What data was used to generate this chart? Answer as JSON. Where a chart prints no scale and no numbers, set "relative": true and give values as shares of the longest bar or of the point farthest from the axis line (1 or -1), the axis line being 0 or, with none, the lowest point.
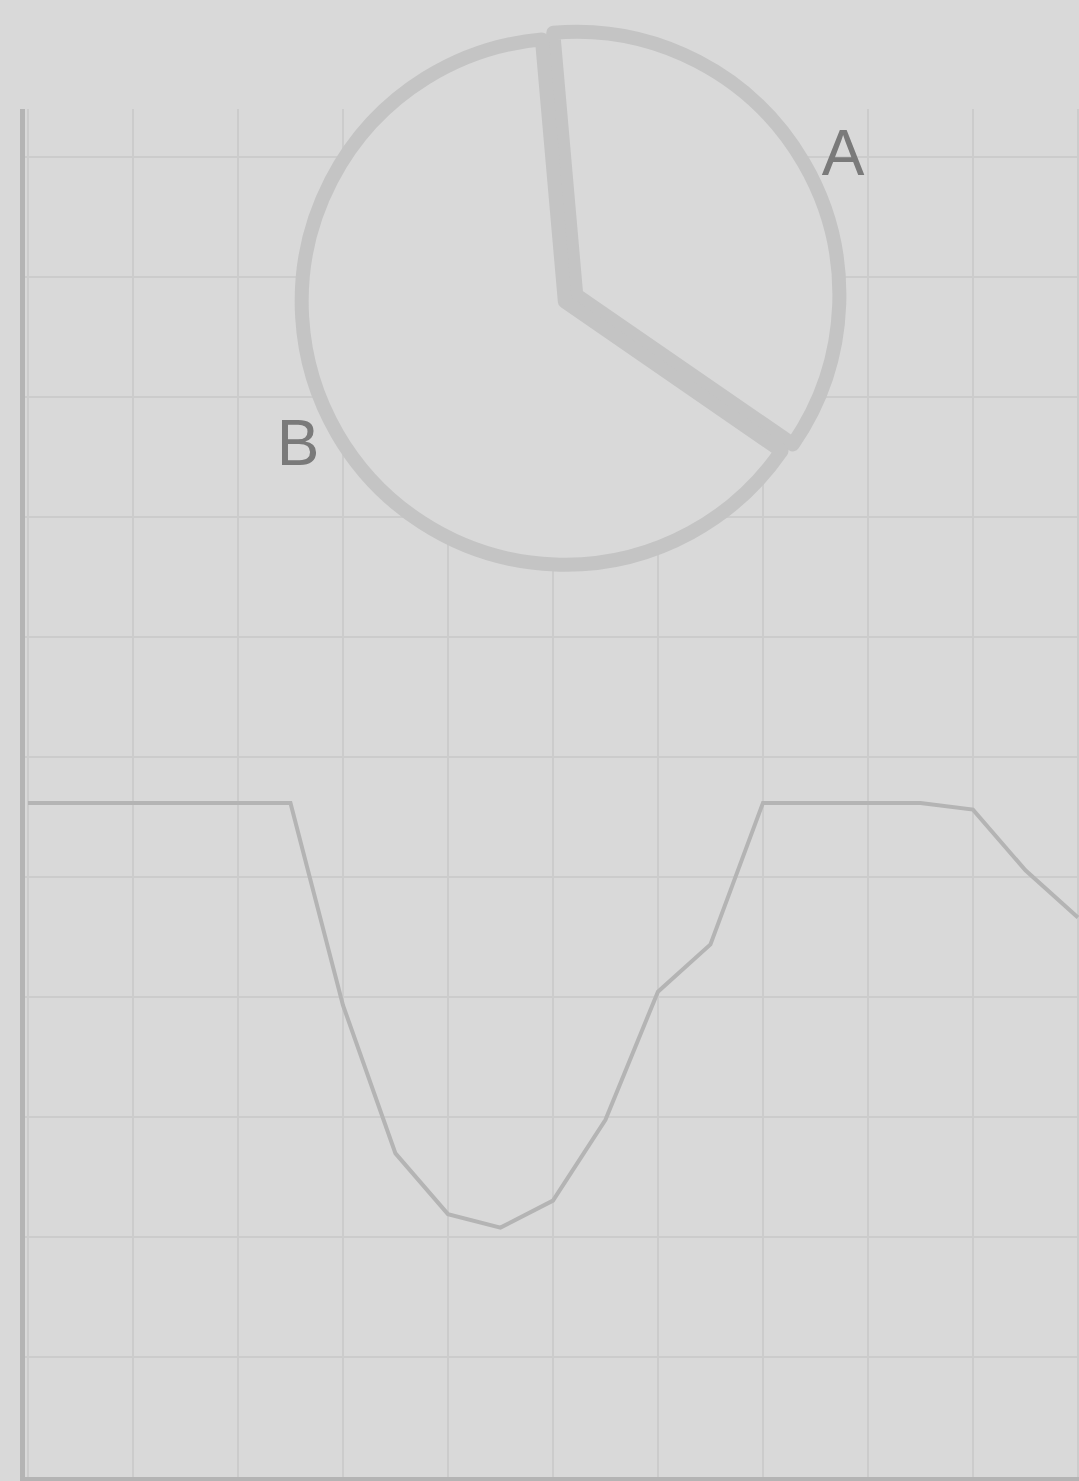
{
  "chart_data": [
    {
      "type": "pie",
      "categories": [
        "A",
        "B"
      ],
      "values": [
        36,
        64
      ],
      "colors": [
        "#d9d9d9",
        "#d9d9d9"
      ]
    },
    {
      "type": "line",
      "relative": true,
      "categories": [
        null,
        null,
        null,
        null,
        null,
        null,
        null,
        null,
        null,
        null,
        null,
        null,
        null,
        null,
        null,
        null,
        null,
        null,
        null,
        null,
        null
      ],
      "series": [
        {
          "color": "#b4b4b4",
          "values": [
            1.0,
            1.0,
            1.0,
            1.0,
            1.0,
            1.0,
            0.7,
            0.48,
            0.39,
            0.37,
            0.41,
            0.53,
            0.72,
            0.79,
            1.0,
            1.0,
            1.0,
            1.0,
            0.99,
            0.9,
            0.83
          ]
        }
      ],
      "grid": true
    }
  ]
}
